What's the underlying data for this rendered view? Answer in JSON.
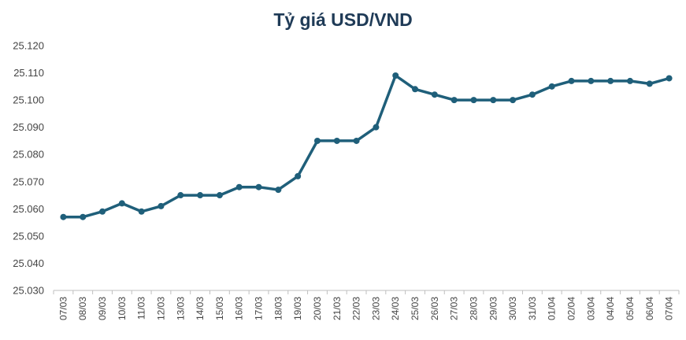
{
  "chart_data": {
    "type": "line",
    "title": "Tỷ giá USD/VND",
    "xlabel": "",
    "ylabel": "",
    "ylim": [
      25030,
      25120
    ],
    "y_ticks": [
      25030,
      25040,
      25050,
      25060,
      25070,
      25080,
      25090,
      25100,
      25110,
      25120
    ],
    "y_tick_labels": [
      "25.030",
      "25.040",
      "25.050",
      "25.060",
      "25.070",
      "25.080",
      "25.090",
      "25.100",
      "25.110",
      "25.120"
    ],
    "grid": false,
    "categories": [
      "07/03",
      "08/03",
      "09/03",
      "10/03",
      "11/03",
      "12/03",
      "13/03",
      "14/03",
      "15/03",
      "16/03",
      "17/03",
      "18/03",
      "19/03",
      "20/03",
      "21/03",
      "22/03",
      "23/03",
      "24/03",
      "25/03",
      "26/03",
      "27/03",
      "28/03",
      "29/03",
      "30/03",
      "31/03",
      "01/04",
      "02/04",
      "03/04",
      "04/04",
      "05/04",
      "06/04",
      "07/04"
    ],
    "series": [
      {
        "color": "#1f5f7a",
        "values": [
          25057,
          25057,
          25059,
          25062,
          25059,
          25061,
          25065,
          25065,
          25065,
          25068,
          25068,
          25067,
          25072,
          25085,
          25085,
          25085,
          25090,
          25109,
          25104,
          25102,
          25100,
          25100,
          25100,
          25100,
          25102,
          25105,
          25107,
          25107,
          25107,
          25107,
          25106,
          25108
        ]
      }
    ]
  }
}
